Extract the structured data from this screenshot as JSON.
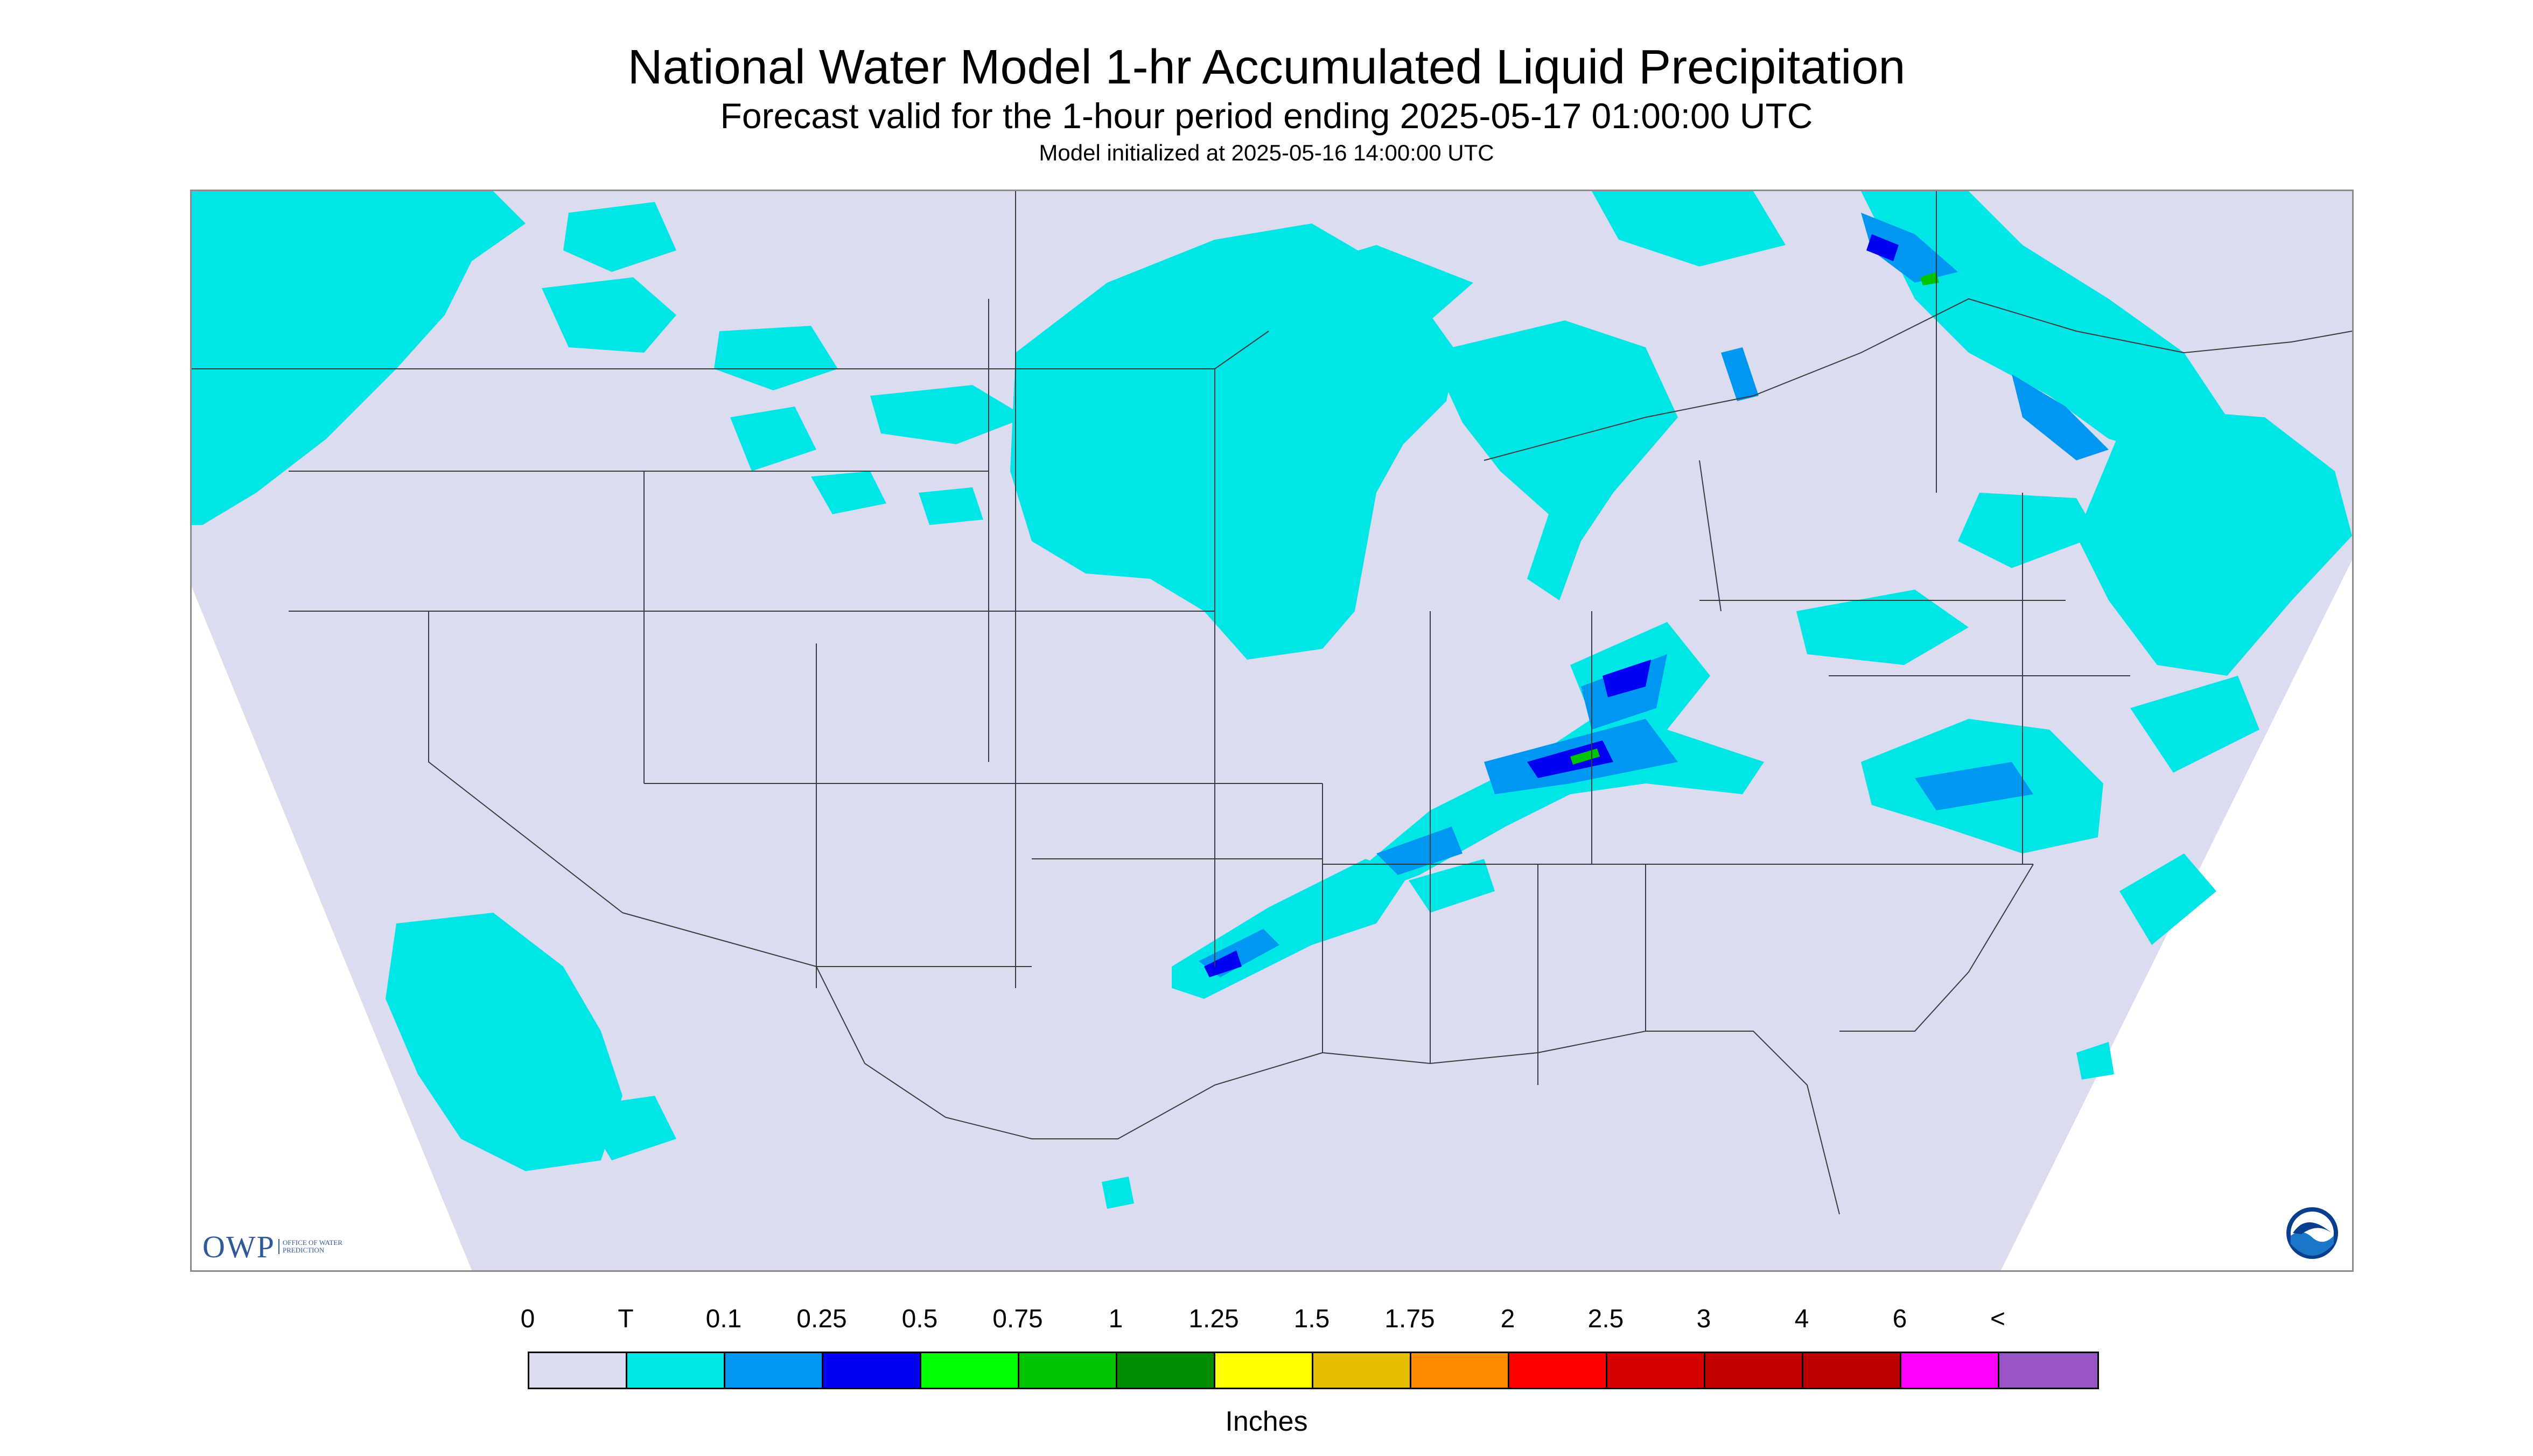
{
  "title": "National Water Model 1-hr Accumulated Liquid Precipitation",
  "subtitle": "Forecast valid for the 1-hour period ending 2025-05-17 01:00:00 UTC",
  "init_line": "Model initialized at 2025-05-16 14:00:00 UTC",
  "logos": {
    "owp_letters": "OWP",
    "owp_text": "Office of Water Prediction",
    "noaa_text": "NOAA"
  },
  "legend": {
    "units": "Inches",
    "labels": [
      "0",
      "T",
      "0.1",
      "0.25",
      "0.5",
      "0.75",
      "1",
      "1.25",
      "1.5",
      "1.75",
      "2",
      "2.5",
      "3",
      "4",
      "6",
      "<"
    ],
    "colors": [
      "#dcdcf0",
      "#00e6e6",
      "#0097f2",
      "#0000f2",
      "#00ff00",
      "#00c400",
      "#008c00",
      "#ffff00",
      "#e6be00",
      "#ff8c00",
      "#ff0000",
      "#d70000",
      "#c40000",
      "#bc0000",
      "#ff00ff",
      "#9955c8"
    ]
  },
  "map": {
    "domain_color": "#dcdcf0",
    "outside_color": "#ffffff",
    "line_color": "#3a3a3a"
  }
}
